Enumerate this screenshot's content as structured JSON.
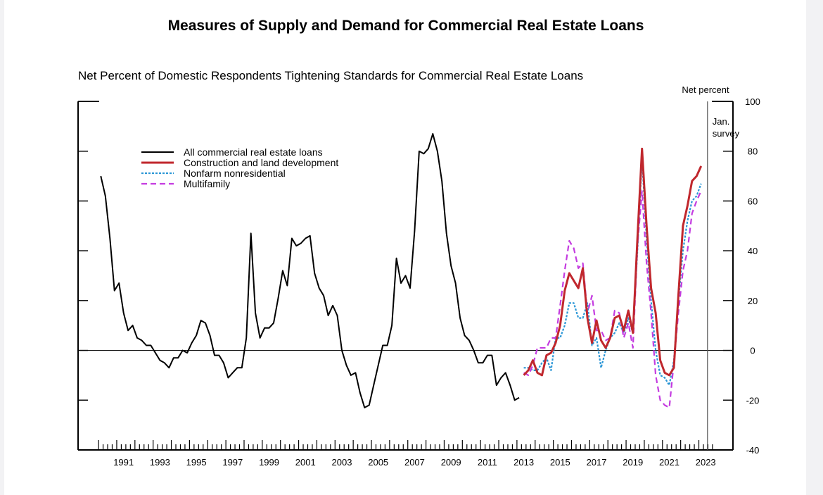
{
  "chart_data": {
    "type": "line",
    "title": "Measures of Supply and Demand for Commercial Real Estate Loans",
    "subtitle": "Net Percent of Domestic Respondents Tightening Standards for Commercial Real Estate Loans",
    "ylabel": "Net percent",
    "annotation": [
      "Jan.",
      "survey"
    ],
    "annotation_x": 2023.0,
    "ylim": [
      -40,
      100
    ],
    "xlim": [
      1989,
      2025
    ],
    "y_ticks": [
      "-40",
      "-20",
      "0",
      "20",
      "40",
      "60",
      "80",
      "100"
    ],
    "x_tick_labels": [
      "1991",
      "1993",
      "1995",
      "1997",
      "1999",
      "2001",
      "2003",
      "2005",
      "2007",
      "2009",
      "2011",
      "2013",
      "2015",
      "2017",
      "2019",
      "2021",
      "2023"
    ],
    "legend": [
      "All commercial real estate loans",
      "Construction and land development",
      "Nonfarm nonresidential",
      "Multifamily"
    ],
    "series": [
      {
        "name": "All commercial real estate loans",
        "color": "#000000",
        "x": [
          1990.25,
          1990.5,
          1990.75,
          1991.0,
          1991.25,
          1991.5,
          1991.75,
          1992.0,
          1992.25,
          1992.5,
          1992.75,
          1993.0,
          1993.25,
          1993.5,
          1993.75,
          1994.0,
          1994.25,
          1994.5,
          1994.75,
          1995.0,
          1995.25,
          1995.5,
          1995.75,
          1996.0,
          1996.25,
          1996.5,
          1996.75,
          1997.0,
          1997.25,
          1997.5,
          1997.75,
          1998.0,
          1998.25,
          1998.5,
          1998.75,
          1999.0,
          1999.25,
          1999.5,
          1999.75,
          2000.0,
          2000.25,
          2000.5,
          2000.75,
          2001.0,
          2001.25,
          2001.5,
          2001.75,
          2002.0,
          2002.25,
          2002.5,
          2002.75,
          2003.0,
          2003.25,
          2003.5,
          2003.75,
          2004.0,
          2004.25,
          2004.5,
          2004.75,
          2005.0,
          2005.25,
          2005.5,
          2005.75,
          2006.0,
          2006.25,
          2006.5,
          2006.75,
          2007.0,
          2007.25,
          2007.5,
          2007.75,
          2008.0,
          2008.25,
          2008.5,
          2008.75,
          2009.0,
          2009.25,
          2009.5,
          2009.75,
          2010.0,
          2010.25,
          2010.5,
          2010.75,
          2011.0,
          2011.25,
          2011.5,
          2011.75,
          2012.0,
          2012.25,
          2012.5,
          2012.75,
          2013.0,
          2013.25
        ],
        "values": [
          70,
          62,
          45,
          24,
          27,
          15,
          8,
          10,
          5,
          4,
          2,
          2,
          -1,
          -4,
          -5,
          -7,
          -3,
          -3,
          0,
          -1,
          3,
          6,
          12,
          11,
          6,
          -2,
          -2,
          -5,
          -11,
          -9,
          -7,
          -7,
          5,
          47,
          15,
          5,
          9,
          9,
          11,
          21,
          32,
          26,
          45,
          42,
          43,
          45,
          46,
          31,
          25,
          22,
          14,
          18,
          14,
          0,
          -6,
          -10,
          -9,
          -17,
          -23,
          -22,
          -14,
          -6,
          2,
          2,
          10,
          37,
          27,
          30,
          25,
          48,
          80,
          79,
          81,
          87,
          80,
          68,
          47,
          34,
          27,
          13,
          6,
          4,
          0,
          -5,
          -5,
          -2,
          -2,
          -14,
          -11,
          -9,
          -14,
          -20,
          -19
        ]
      },
      {
        "name": "Construction and land development",
        "color": "#c0272d",
        "x": [
          2013.5,
          2013.75,
          2014.0,
          2014.25,
          2014.5,
          2014.75,
          2015.0,
          2015.25,
          2015.5,
          2015.75,
          2016.0,
          2016.25,
          2016.5,
          2016.75,
          2017.0,
          2017.25,
          2017.5,
          2017.75,
          2018.0,
          2018.25,
          2018.5,
          2018.75,
          2019.0,
          2019.25,
          2019.5,
          2019.75,
          2020.0,
          2020.25,
          2020.5,
          2020.75,
          2021.0,
          2021.25,
          2021.5,
          2021.75,
          2022.0,
          2022.25,
          2022.5,
          2022.75,
          2023.0,
          2023.25
        ],
        "values": [
          -10,
          -8,
          -4,
          -9,
          -10,
          -2,
          -1,
          3,
          10,
          24,
          31,
          28,
          25,
          33,
          13,
          3,
          12,
          4,
          1,
          5,
          13,
          14,
          8,
          16,
          7,
          45,
          81,
          50,
          25,
          15,
          -4,
          -9,
          -10,
          -7,
          22,
          50,
          58,
          68,
          70,
          74
        ]
      },
      {
        "name": "Nonfarm nonresidential",
        "color": "#2b96d6",
        "x": [
          2013.5,
          2013.75,
          2014.0,
          2014.25,
          2014.5,
          2014.75,
          2015.0,
          2015.25,
          2015.5,
          2015.75,
          2016.0,
          2016.25,
          2016.5,
          2016.75,
          2017.0,
          2017.25,
          2017.5,
          2017.75,
          2018.0,
          2018.25,
          2018.5,
          2018.75,
          2019.0,
          2019.25,
          2019.5,
          2019.75,
          2020.0,
          2020.25,
          2020.5,
          2020.75,
          2021.0,
          2021.25,
          2021.5,
          2021.75,
          2022.0,
          2022.25,
          2022.5,
          2022.75,
          2023.0,
          2023.25
        ],
        "values": [
          -7,
          -7,
          -8,
          -8,
          -5,
          -3,
          -8,
          5,
          5,
          10,
          19,
          19,
          13,
          13,
          19,
          2,
          5,
          -7,
          0,
          5,
          7,
          11,
          7,
          13,
          7,
          40,
          77,
          45,
          20,
          0,
          -10,
          -11,
          -14,
          -4,
          20,
          40,
          52,
          60,
          62,
          67
        ]
      },
      {
        "name": "Multifamily",
        "color": "#c43ce0",
        "x": [
          2013.5,
          2013.75,
          2014.0,
          2014.25,
          2014.5,
          2014.75,
          2015.0,
          2015.25,
          2015.5,
          2015.75,
          2016.0,
          2016.25,
          2016.5,
          2016.75,
          2017.0,
          2017.25,
          2017.5,
          2017.75,
          2018.0,
          2018.25,
          2018.5,
          2018.75,
          2019.0,
          2019.25,
          2019.5,
          2019.75,
          2020.0,
          2020.25,
          2020.5,
          2020.75,
          2021.0,
          2021.25,
          2021.5,
          2021.75,
          2022.0,
          2022.25,
          2022.5,
          2022.75,
          2023.0,
          2023.25
        ],
        "values": [
          -9,
          -10,
          -6,
          1,
          1,
          1,
          5,
          5,
          18,
          32,
          44,
          41,
          33,
          35,
          15,
          22,
          8,
          8,
          4,
          5,
          16,
          15,
          5,
          11,
          1,
          42,
          64,
          35,
          15,
          -10,
          -20,
          -22,
          -23,
          -5,
          15,
          32,
          40,
          55,
          60,
          64
        ]
      }
    ]
  }
}
